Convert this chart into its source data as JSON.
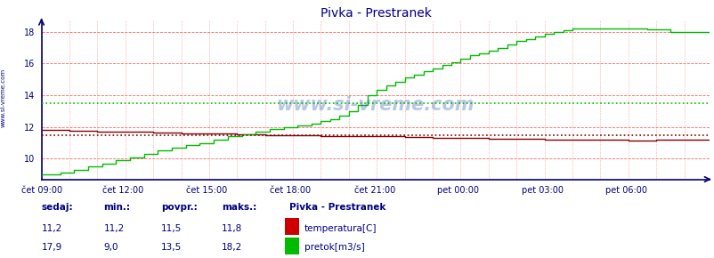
{
  "title": "Pivka - Prestranek",
  "background_color": "#ffffff",
  "plot_bg_color": "#ffffff",
  "x_labels": [
    "čet 09:00",
    "čet 12:00",
    "čet 15:00",
    "čet 18:00",
    "čet 21:00",
    "pet 00:00",
    "pet 03:00",
    "pet 06:00"
  ],
  "x_ticks_norm": [
    0.0,
    0.125,
    0.25,
    0.375,
    0.5,
    0.625,
    0.75,
    0.875
  ],
  "total_points": 288,
  "ylim": [
    8.7,
    18.7
  ],
  "yticks": [
    10,
    12,
    14,
    16,
    18
  ],
  "temp_color": "#800000",
  "flow_color": "#00bb00",
  "temp_avg": 11.5,
  "flow_avg": 13.5,
  "watermark": "www.si-vreme.com",
  "left_label": "www.si-vreme.com",
  "legend_title": "Pivka - Prestranek",
  "legend_items": [
    "temperatura[C]",
    "pretok[m3/s]"
  ],
  "temp_stats": [
    "11,2",
    "11,2",
    "11,5",
    "11,8"
  ],
  "flow_stats": [
    "17,9",
    "9,0",
    "13,5",
    "18,2"
  ],
  "grid_major_color": "#ff6666",
  "grid_minor_color": "#ffaaaa",
  "axis_color": "#000080",
  "text_color": "#000080",
  "title_color": "#000080"
}
